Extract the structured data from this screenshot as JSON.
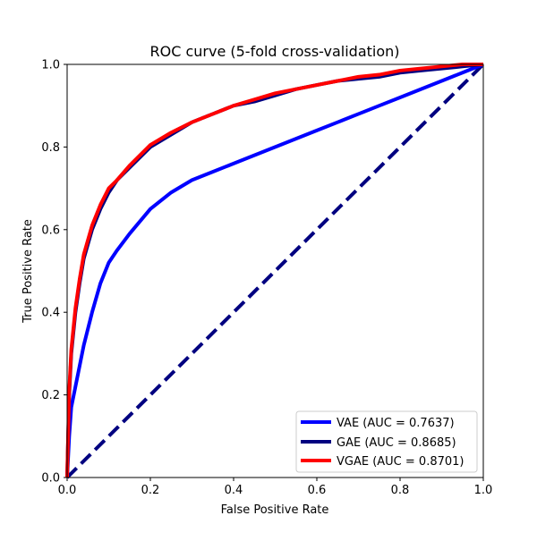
{
  "chart_data": {
    "type": "line",
    "title": "ROC curve (5-fold cross-validation)",
    "xlabel": "False Positive Rate",
    "ylabel": "True Positive Rate",
    "xlim": [
      0.0,
      1.0
    ],
    "ylim": [
      0.0,
      1.0
    ],
    "xticks": [
      "0.0",
      "0.2",
      "0.4",
      "0.6",
      "0.8",
      "1.0"
    ],
    "yticks": [
      "0.0",
      "0.2",
      "0.4",
      "0.6",
      "0.8",
      "1.0"
    ],
    "grid": false,
    "legend_position": "lower-right",
    "series": [
      {
        "name": "VAE (AUC = 0.7637)",
        "color": "#0000ff",
        "x": [
          0.0,
          0.005,
          0.01,
          0.02,
          0.03,
          0.04,
          0.06,
          0.08,
          0.1,
          0.12,
          0.15,
          0.2,
          0.25,
          0.3,
          0.35,
          0.4,
          0.45,
          0.5,
          0.55,
          0.6,
          0.65,
          0.7,
          0.75,
          0.8,
          0.85,
          0.9,
          0.95,
          1.0
        ],
        "y": [
          0.0,
          0.1,
          0.17,
          0.22,
          0.27,
          0.32,
          0.4,
          0.47,
          0.52,
          0.55,
          0.59,
          0.65,
          0.69,
          0.72,
          0.74,
          0.76,
          0.78,
          0.8,
          0.82,
          0.84,
          0.86,
          0.88,
          0.9,
          0.92,
          0.94,
          0.96,
          0.98,
          1.0
        ]
      },
      {
        "name": "GAE (AUC = 0.8685)",
        "color": "#000080",
        "x": [
          0.0,
          0.005,
          0.01,
          0.02,
          0.03,
          0.04,
          0.06,
          0.08,
          0.1,
          0.12,
          0.15,
          0.2,
          0.25,
          0.3,
          0.35,
          0.4,
          0.45,
          0.5,
          0.55,
          0.6,
          0.65,
          0.7,
          0.75,
          0.8,
          0.85,
          0.9,
          0.95,
          1.0
        ],
        "y": [
          0.0,
          0.2,
          0.3,
          0.4,
          0.47,
          0.53,
          0.6,
          0.65,
          0.69,
          0.72,
          0.75,
          0.8,
          0.83,
          0.86,
          0.88,
          0.9,
          0.91,
          0.925,
          0.94,
          0.95,
          0.96,
          0.965,
          0.97,
          0.98,
          0.985,
          0.99,
          0.995,
          1.0
        ]
      },
      {
        "name": "VGAE (AUC = 0.8701)",
        "color": "#ff0000",
        "x": [
          0.0,
          0.005,
          0.01,
          0.02,
          0.03,
          0.04,
          0.06,
          0.08,
          0.1,
          0.12,
          0.15,
          0.2,
          0.25,
          0.3,
          0.35,
          0.4,
          0.45,
          0.5,
          0.55,
          0.6,
          0.65,
          0.7,
          0.75,
          0.8,
          0.85,
          0.9,
          0.95,
          1.0
        ],
        "y": [
          0.0,
          0.21,
          0.31,
          0.41,
          0.48,
          0.54,
          0.61,
          0.66,
          0.7,
          0.72,
          0.755,
          0.805,
          0.835,
          0.86,
          0.88,
          0.9,
          0.915,
          0.93,
          0.94,
          0.95,
          0.96,
          0.97,
          0.975,
          0.985,
          0.99,
          0.995,
          1.0,
          1.0
        ]
      },
      {
        "name": "",
        "color": "#000080",
        "dashed": true,
        "x": [
          0.0,
          1.0
        ],
        "y": [
          0.0,
          1.0
        ]
      }
    ]
  }
}
